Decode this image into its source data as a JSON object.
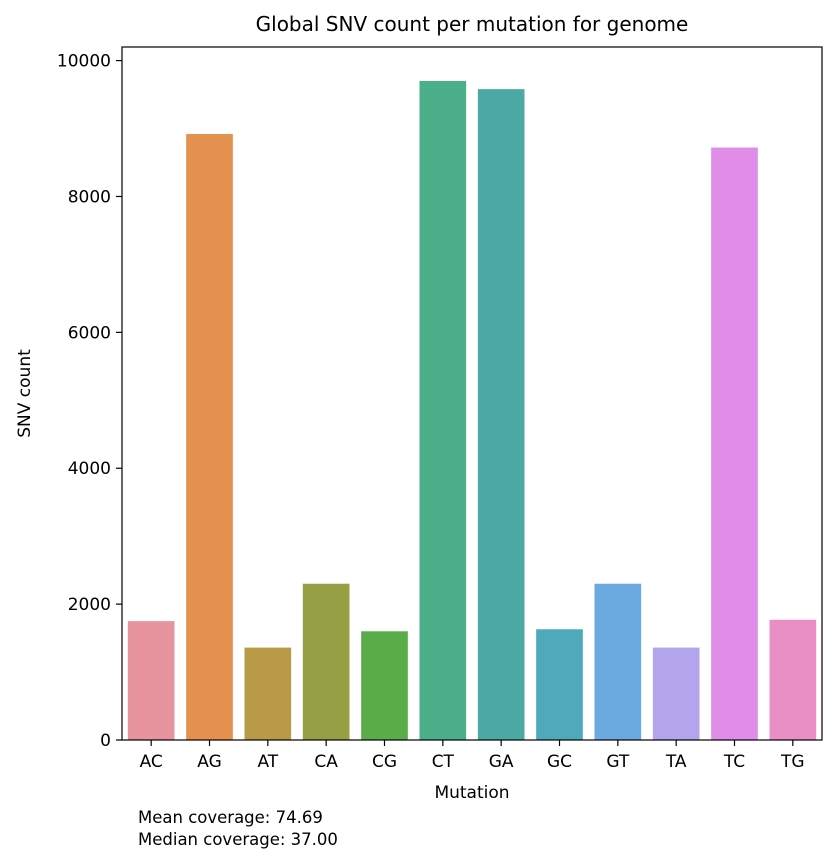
{
  "chart_data": {
    "type": "bar",
    "title": "Global SNV count per mutation for genome",
    "xlabel": "Mutation",
    "ylabel": "SNV count",
    "categories": [
      "AC",
      "AG",
      "AT",
      "CA",
      "CG",
      "CT",
      "GA",
      "GC",
      "GT",
      "TA",
      "TC",
      "TG"
    ],
    "values": [
      1750,
      8920,
      1360,
      2300,
      1600,
      9700,
      9580,
      1630,
      2300,
      1360,
      8720,
      1770
    ],
    "colors": [
      "#e8949f",
      "#e4914f",
      "#b99a46",
      "#979f44",
      "#59ac48",
      "#4baf8a",
      "#4ca9a4",
      "#4eaaba",
      "#6aaae0",
      "#b3a5eb",
      "#e08ce9",
      "#e98fc5"
    ],
    "ylim": [
      0,
      10200
    ],
    "yticks": [
      0,
      2000,
      4000,
      6000,
      8000,
      10000
    ],
    "grid": false,
    "legend": "none"
  },
  "footer": {
    "mean": "Mean coverage: 74.69",
    "median": "Median coverage: 37.00"
  }
}
